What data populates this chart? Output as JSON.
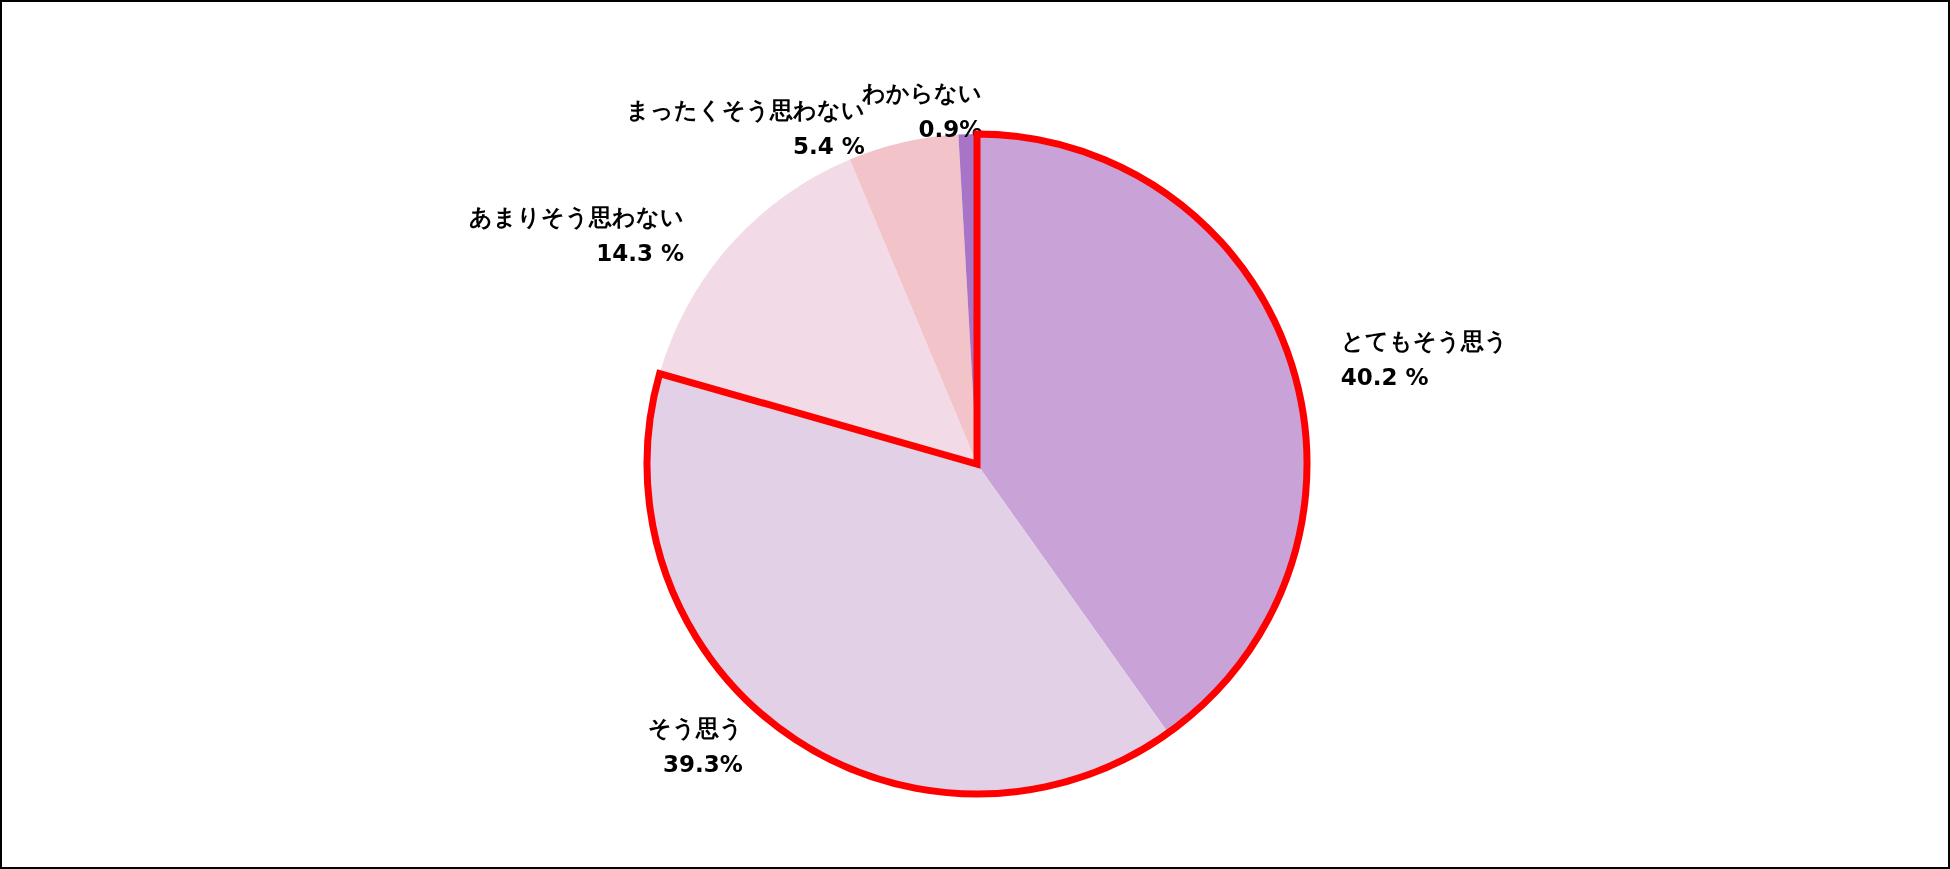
{
  "chart_data": {
    "type": "pie",
    "categories": [
      "とてもそう思う",
      "そう思う",
      "あまりそう思わない",
      "まったくそう思わない",
      "わからない"
    ],
    "values": [
      40.2,
      39.3,
      14.3,
      5.4,
      0.9
    ],
    "value_labels": [
      "40.2 %",
      "39.3%",
      "14.3 %",
      "5.4 %",
      "0.9%"
    ],
    "colors": [
      "#c9a3d8",
      "#e2d0e6",
      "#f2dbe6",
      "#f2c4ca",
      "#a874c8"
    ]
  }
}
